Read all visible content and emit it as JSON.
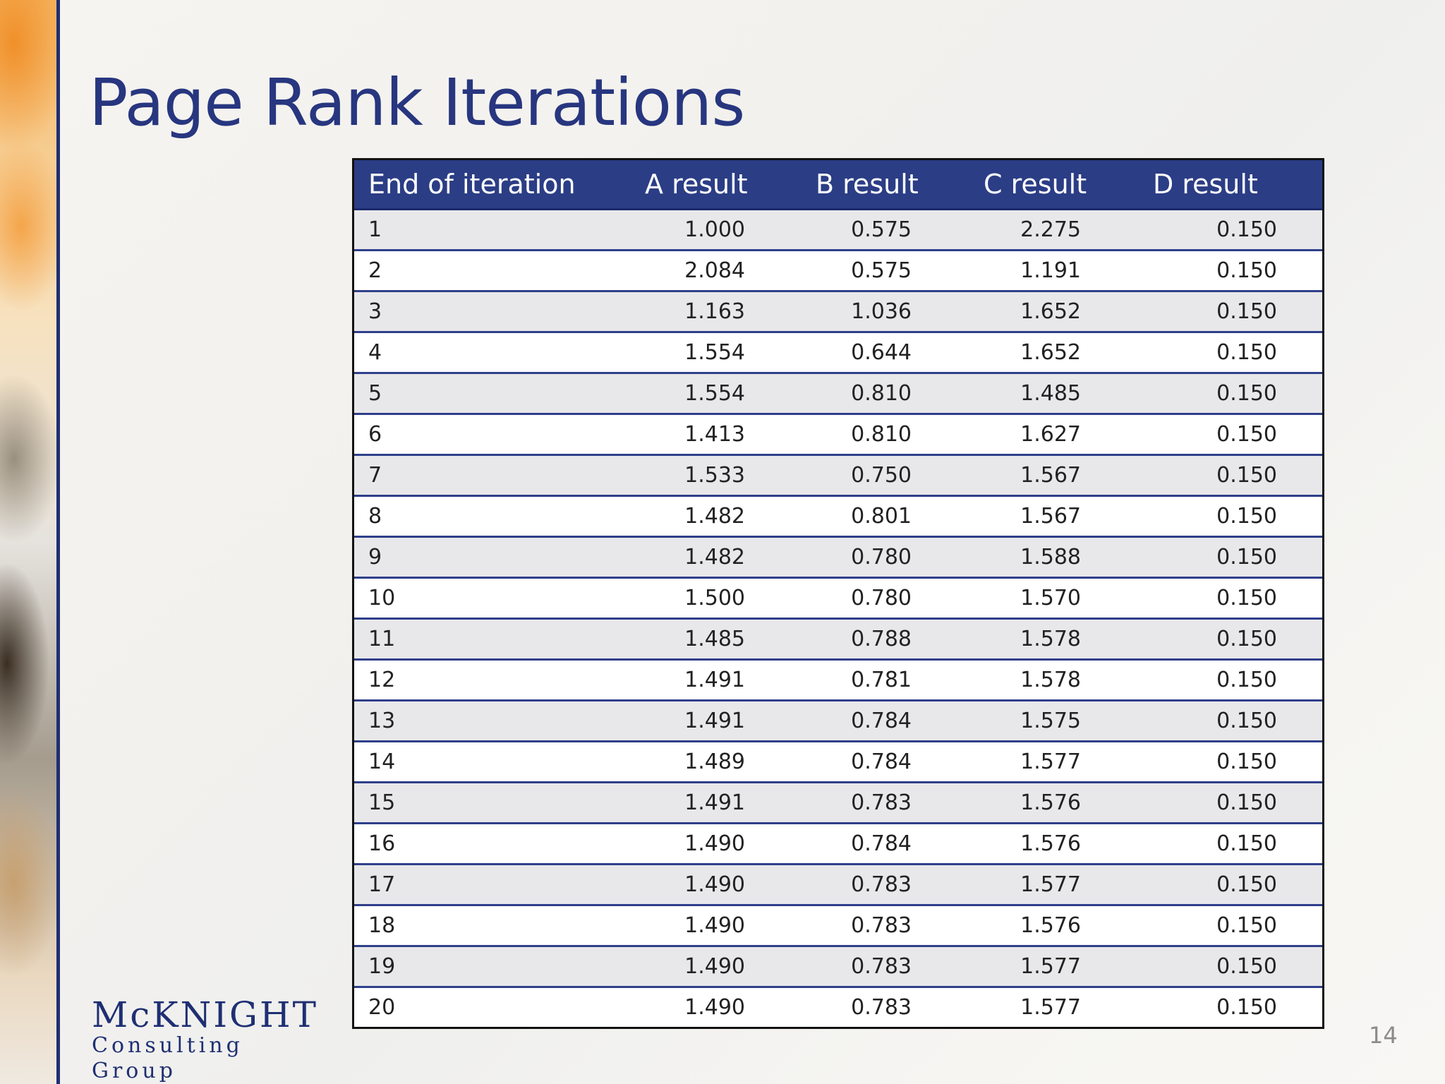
{
  "slide": {
    "title": "Page Rank Iterations",
    "page_number": "14"
  },
  "logo": {
    "line1": "McKNIGHT",
    "line2": "Consulting Group"
  },
  "table": {
    "headers": [
      "End of iteration",
      "A result",
      "B result",
      "C result",
      "D result"
    ],
    "rows": [
      [
        "1",
        "1.000",
        "0.575",
        "2.275",
        "0.150"
      ],
      [
        "2",
        "2.084",
        "0.575",
        "1.191",
        "0.150"
      ],
      [
        "3",
        "1.163",
        "1.036",
        "1.652",
        "0.150"
      ],
      [
        "4",
        "1.554",
        "0.644",
        "1.652",
        "0.150"
      ],
      [
        "5",
        "1.554",
        "0.810",
        "1.485",
        "0.150"
      ],
      [
        "6",
        "1.413",
        "0.810",
        "1.627",
        "0.150"
      ],
      [
        "7",
        "1.533",
        "0.750",
        "1.567",
        "0.150"
      ],
      [
        "8",
        "1.482",
        "0.801",
        "1.567",
        "0.150"
      ],
      [
        "9",
        "1.482",
        "0.780",
        "1.588",
        "0.150"
      ],
      [
        "10",
        "1.500",
        "0.780",
        "1.570",
        "0.150"
      ],
      [
        "11",
        "1.485",
        "0.788",
        "1.578",
        "0.150"
      ],
      [
        "12",
        "1.491",
        "0.781",
        "1.578",
        "0.150"
      ],
      [
        "13",
        "1.491",
        "0.784",
        "1.575",
        "0.150"
      ],
      [
        "14",
        "1.489",
        "0.784",
        "1.577",
        "0.150"
      ],
      [
        "15",
        "1.491",
        "0.783",
        "1.576",
        "0.150"
      ],
      [
        "16",
        "1.490",
        "0.784",
        "1.576",
        "0.150"
      ],
      [
        "17",
        "1.490",
        "0.783",
        "1.577",
        "0.150"
      ],
      [
        "18",
        "1.490",
        "0.783",
        "1.576",
        "0.150"
      ],
      [
        "19",
        "1.490",
        "0.783",
        "1.577",
        "0.150"
      ],
      [
        "20",
        "1.490",
        "0.783",
        "1.577",
        "0.150"
      ]
    ]
  }
}
